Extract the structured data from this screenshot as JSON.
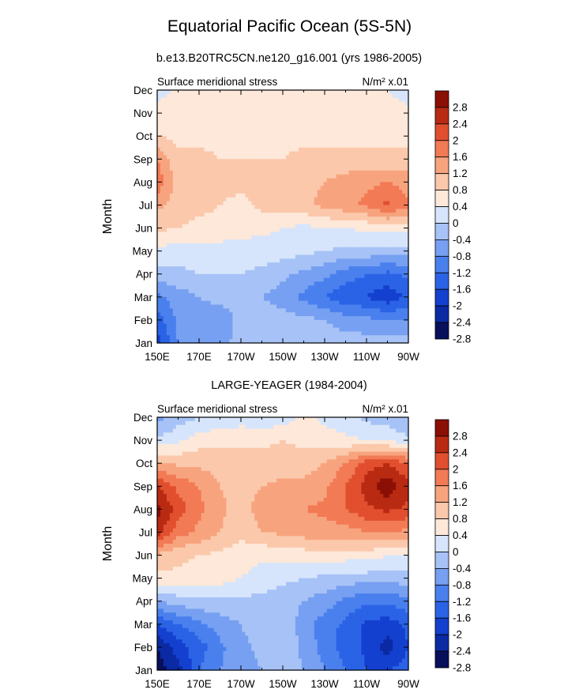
{
  "title": "Equatorial Pacific Ocean (5S-5N)",
  "chart_data": [
    {
      "type": "heatmap",
      "title": "b.e13.B20TRC5CN.ne120_g16.001 (yrs 1986-2005)",
      "left_string": "Surface meridional stress",
      "right_string": "N/m² x.01",
      "xlabel": "",
      "ylabel": "Month",
      "x_ticks": [
        "150E",
        "170E",
        "170W",
        "150W",
        "130W",
        "110W",
        "90W"
      ],
      "x_values": [
        150,
        170,
        190,
        210,
        230,
        250,
        270
      ],
      "xlim": [
        150,
        270
      ],
      "y_ticks": [
        "Jan",
        "Feb",
        "Mar",
        "Apr",
        "May",
        "Jun",
        "Jul",
        "Aug",
        "Sep",
        "Oct",
        "Nov",
        "Dec"
      ],
      "levels": [
        -2.8,
        -2.4,
        -2,
        -1.6,
        -1.2,
        -0.8,
        -0.4,
        0,
        0.4,
        0.8,
        1.2,
        1.6,
        2,
        2.4,
        2.8
      ],
      "colorbar_labels": [
        "2.8",
        "2.4",
        "2",
        "1.6",
        "1.2",
        "0.8",
        "0.4",
        "0",
        "-0.4",
        "-0.8",
        "-1.2",
        "-1.6",
        "-2",
        "-2.4",
        "-2.8"
      ],
      "colors": [
        "#08105c",
        "#0b2aa3",
        "#1440d0",
        "#2b63e6",
        "#4a80ee",
        "#77a0f2",
        "#a7c2f6",
        "#d6e5fb",
        "#fde8d9",
        "#fbc8ab",
        "#f7a47e",
        "#f27a55",
        "#e14f2f",
        "#b92a12",
        "#8b0f04"
      ],
      "x_nodes": [
        150,
        160,
        170,
        180,
        190,
        200,
        210,
        220,
        230,
        240,
        250,
        260,
        270
      ],
      "z": [
        [
          -2.2,
          -1.2,
          -0.9,
          -0.9,
          -0.7,
          -0.6,
          -0.6,
          -0.6,
          -0.6,
          -0.6,
          -0.6,
          -0.6,
          -0.6
        ],
        [
          -1.8,
          -1.1,
          -0.9,
          -1.0,
          -0.7,
          -0.6,
          -0.6,
          -0.7,
          -0.8,
          -1.0,
          -1.1,
          -1.2,
          -1.2
        ],
        [
          -1.3,
          -1.0,
          -0.8,
          -0.7,
          -0.7,
          -0.8,
          -1.0,
          -1.3,
          -1.6,
          -1.9,
          -2.0,
          -2.3,
          -1.9
        ],
        [
          -0.6,
          -0.5,
          -0.4,
          -0.4,
          -0.4,
          -0.5,
          -0.7,
          -0.9,
          -1.1,
          -1.4,
          -1.6,
          -1.7,
          -1.5
        ],
        [
          -0.1,
          -0.2,
          -0.2,
          -0.2,
          -0.2,
          -0.2,
          -0.2,
          -0.3,
          -0.4,
          -0.5,
          -0.5,
          -0.6,
          -0.6
        ],
        [
          0.5,
          0.4,
          0.3,
          0.3,
          0.2,
          0.1,
          0.0,
          -0.1,
          0.0,
          0.0,
          0.1,
          0.2,
          0.2
        ],
        [
          0.9,
          0.6,
          0.5,
          0.4,
          0.3,
          0.5,
          0.6,
          0.7,
          0.9,
          1.1,
          1.3,
          1.7,
          1.3
        ],
        [
          1.5,
          0.6,
          0.5,
          0.5,
          0.5,
          0.5,
          0.6,
          0.7,
          0.8,
          1.0,
          1.1,
          1.2,
          1.0
        ],
        [
          1.2,
          0.5,
          0.5,
          0.4,
          0.4,
          0.4,
          0.4,
          0.5,
          0.5,
          0.5,
          0.5,
          0.5,
          0.5
        ],
        [
          0.4,
          0.3,
          0.3,
          0.3,
          0.3,
          0.3,
          0.3,
          0.3,
          0.3,
          0.3,
          0.3,
          0.3,
          0.3
        ],
        [
          0.2,
          0.3,
          0.3,
          0.3,
          0.3,
          0.2,
          0.2,
          0.2,
          0.2,
          0.2,
          0.2,
          0.2,
          0.1
        ],
        [
          -0.2,
          0.1,
          0.2,
          0.2,
          0.2,
          0.2,
          0.2,
          0.2,
          0.2,
          0.3,
          0.3,
          0.0,
          -0.2
        ]
      ]
    },
    {
      "type": "heatmap",
      "title": "LARGE-YEAGER (1984-2004)",
      "left_string": "Surface meridional stress",
      "right_string": "N/m² x.01",
      "xlabel": "",
      "ylabel": "Month",
      "x_ticks": [
        "150E",
        "170E",
        "170W",
        "150W",
        "130W",
        "110W",
        "90W"
      ],
      "x_values": [
        150,
        170,
        190,
        210,
        230,
        250,
        270
      ],
      "xlim": [
        150,
        270
      ],
      "y_ticks": [
        "Jan",
        "Feb",
        "Mar",
        "Apr",
        "May",
        "Jun",
        "Jul",
        "Aug",
        "Sep",
        "Oct",
        "Nov",
        "Dec"
      ],
      "levels": [
        -2.8,
        -2.4,
        -2,
        -1.6,
        -1.2,
        -0.8,
        -0.4,
        0,
        0.4,
        0.8,
        1.2,
        1.6,
        2,
        2.4,
        2.8
      ],
      "colorbar_labels": [
        "2.8",
        "2.4",
        "2",
        "1.6",
        "1.2",
        "0.8",
        "0.4",
        "0",
        "-0.4",
        "-0.8",
        "-1.2",
        "-1.6",
        "-2",
        "-2.4",
        "-2.8"
      ],
      "colors": [
        "#08105c",
        "#0b2aa3",
        "#1440d0",
        "#2b63e6",
        "#4a80ee",
        "#77a0f2",
        "#a7c2f6",
        "#d6e5fb",
        "#fde8d9",
        "#fbc8ab",
        "#f7a47e",
        "#f27a55",
        "#e14f2f",
        "#b92a12",
        "#8b0f04"
      ],
      "x_nodes": [
        150,
        160,
        170,
        180,
        190,
        200,
        210,
        220,
        230,
        240,
        250,
        260,
        270
      ],
      "z": [
        [
          -3.0,
          -2.6,
          -1.6,
          -1.2,
          -1.0,
          -0.8,
          -0.6,
          -0.8,
          -1.2,
          -1.6,
          -2.0,
          -2.0,
          -1.8
        ],
        [
          -2.8,
          -2.2,
          -1.8,
          -1.3,
          -0.9,
          -0.7,
          -0.5,
          -0.9,
          -1.4,
          -1.8,
          -2.1,
          -2.6,
          -2.0
        ],
        [
          -2.0,
          -1.6,
          -1.3,
          -1.0,
          -0.8,
          -0.6,
          -0.5,
          -1.0,
          -1.4,
          -1.7,
          -2.1,
          -2.2,
          -1.9
        ],
        [
          -0.8,
          -0.6,
          -0.5,
          -0.5,
          -0.5,
          -0.5,
          -0.6,
          -0.8,
          -1.0,
          -1.3,
          -1.5,
          -1.5,
          -1.3
        ],
        [
          0.3,
          0.3,
          0.2,
          0.2,
          0.0,
          -0.2,
          -0.3,
          -0.4,
          -0.5,
          -0.6,
          -0.6,
          -0.6,
          -0.6
        ],
        [
          0.7,
          0.5,
          0.4,
          0.3,
          0.2,
          0.1,
          0.1,
          0.2,
          0.3,
          0.2,
          0.2,
          0.0,
          0.0
        ],
        [
          2.2,
          1.4,
          1.1,
          0.8,
          0.5,
          0.8,
          0.9,
          1.0,
          1.0,
          1.0,
          1.2,
          1.2,
          1.1
        ],
        [
          2.6,
          1.8,
          1.3,
          0.9,
          0.6,
          1.0,
          1.1,
          1.2,
          1.3,
          1.6,
          1.9,
          2.1,
          1.9
        ],
        [
          2.0,
          1.5,
          1.2,
          0.8,
          0.6,
          0.8,
          0.9,
          0.9,
          1.1,
          1.6,
          2.2,
          2.7,
          2.1
        ],
        [
          0.9,
          0.7,
          0.7,
          0.6,
          0.6,
          0.6,
          0.6,
          0.6,
          0.8,
          1.2,
          1.8,
          2.0,
          1.6
        ],
        [
          -0.3,
          -0.1,
          0.2,
          0.3,
          0.3,
          0.3,
          0.4,
          0.3,
          0.2,
          0.1,
          0.0,
          -0.1,
          -0.3
        ],
        [
          -1.0,
          -0.6,
          -0.4,
          -0.3,
          -0.2,
          -0.3,
          -0.2,
          0.1,
          -0.1,
          -0.3,
          -0.5,
          -0.6,
          -0.8
        ]
      ]
    }
  ]
}
